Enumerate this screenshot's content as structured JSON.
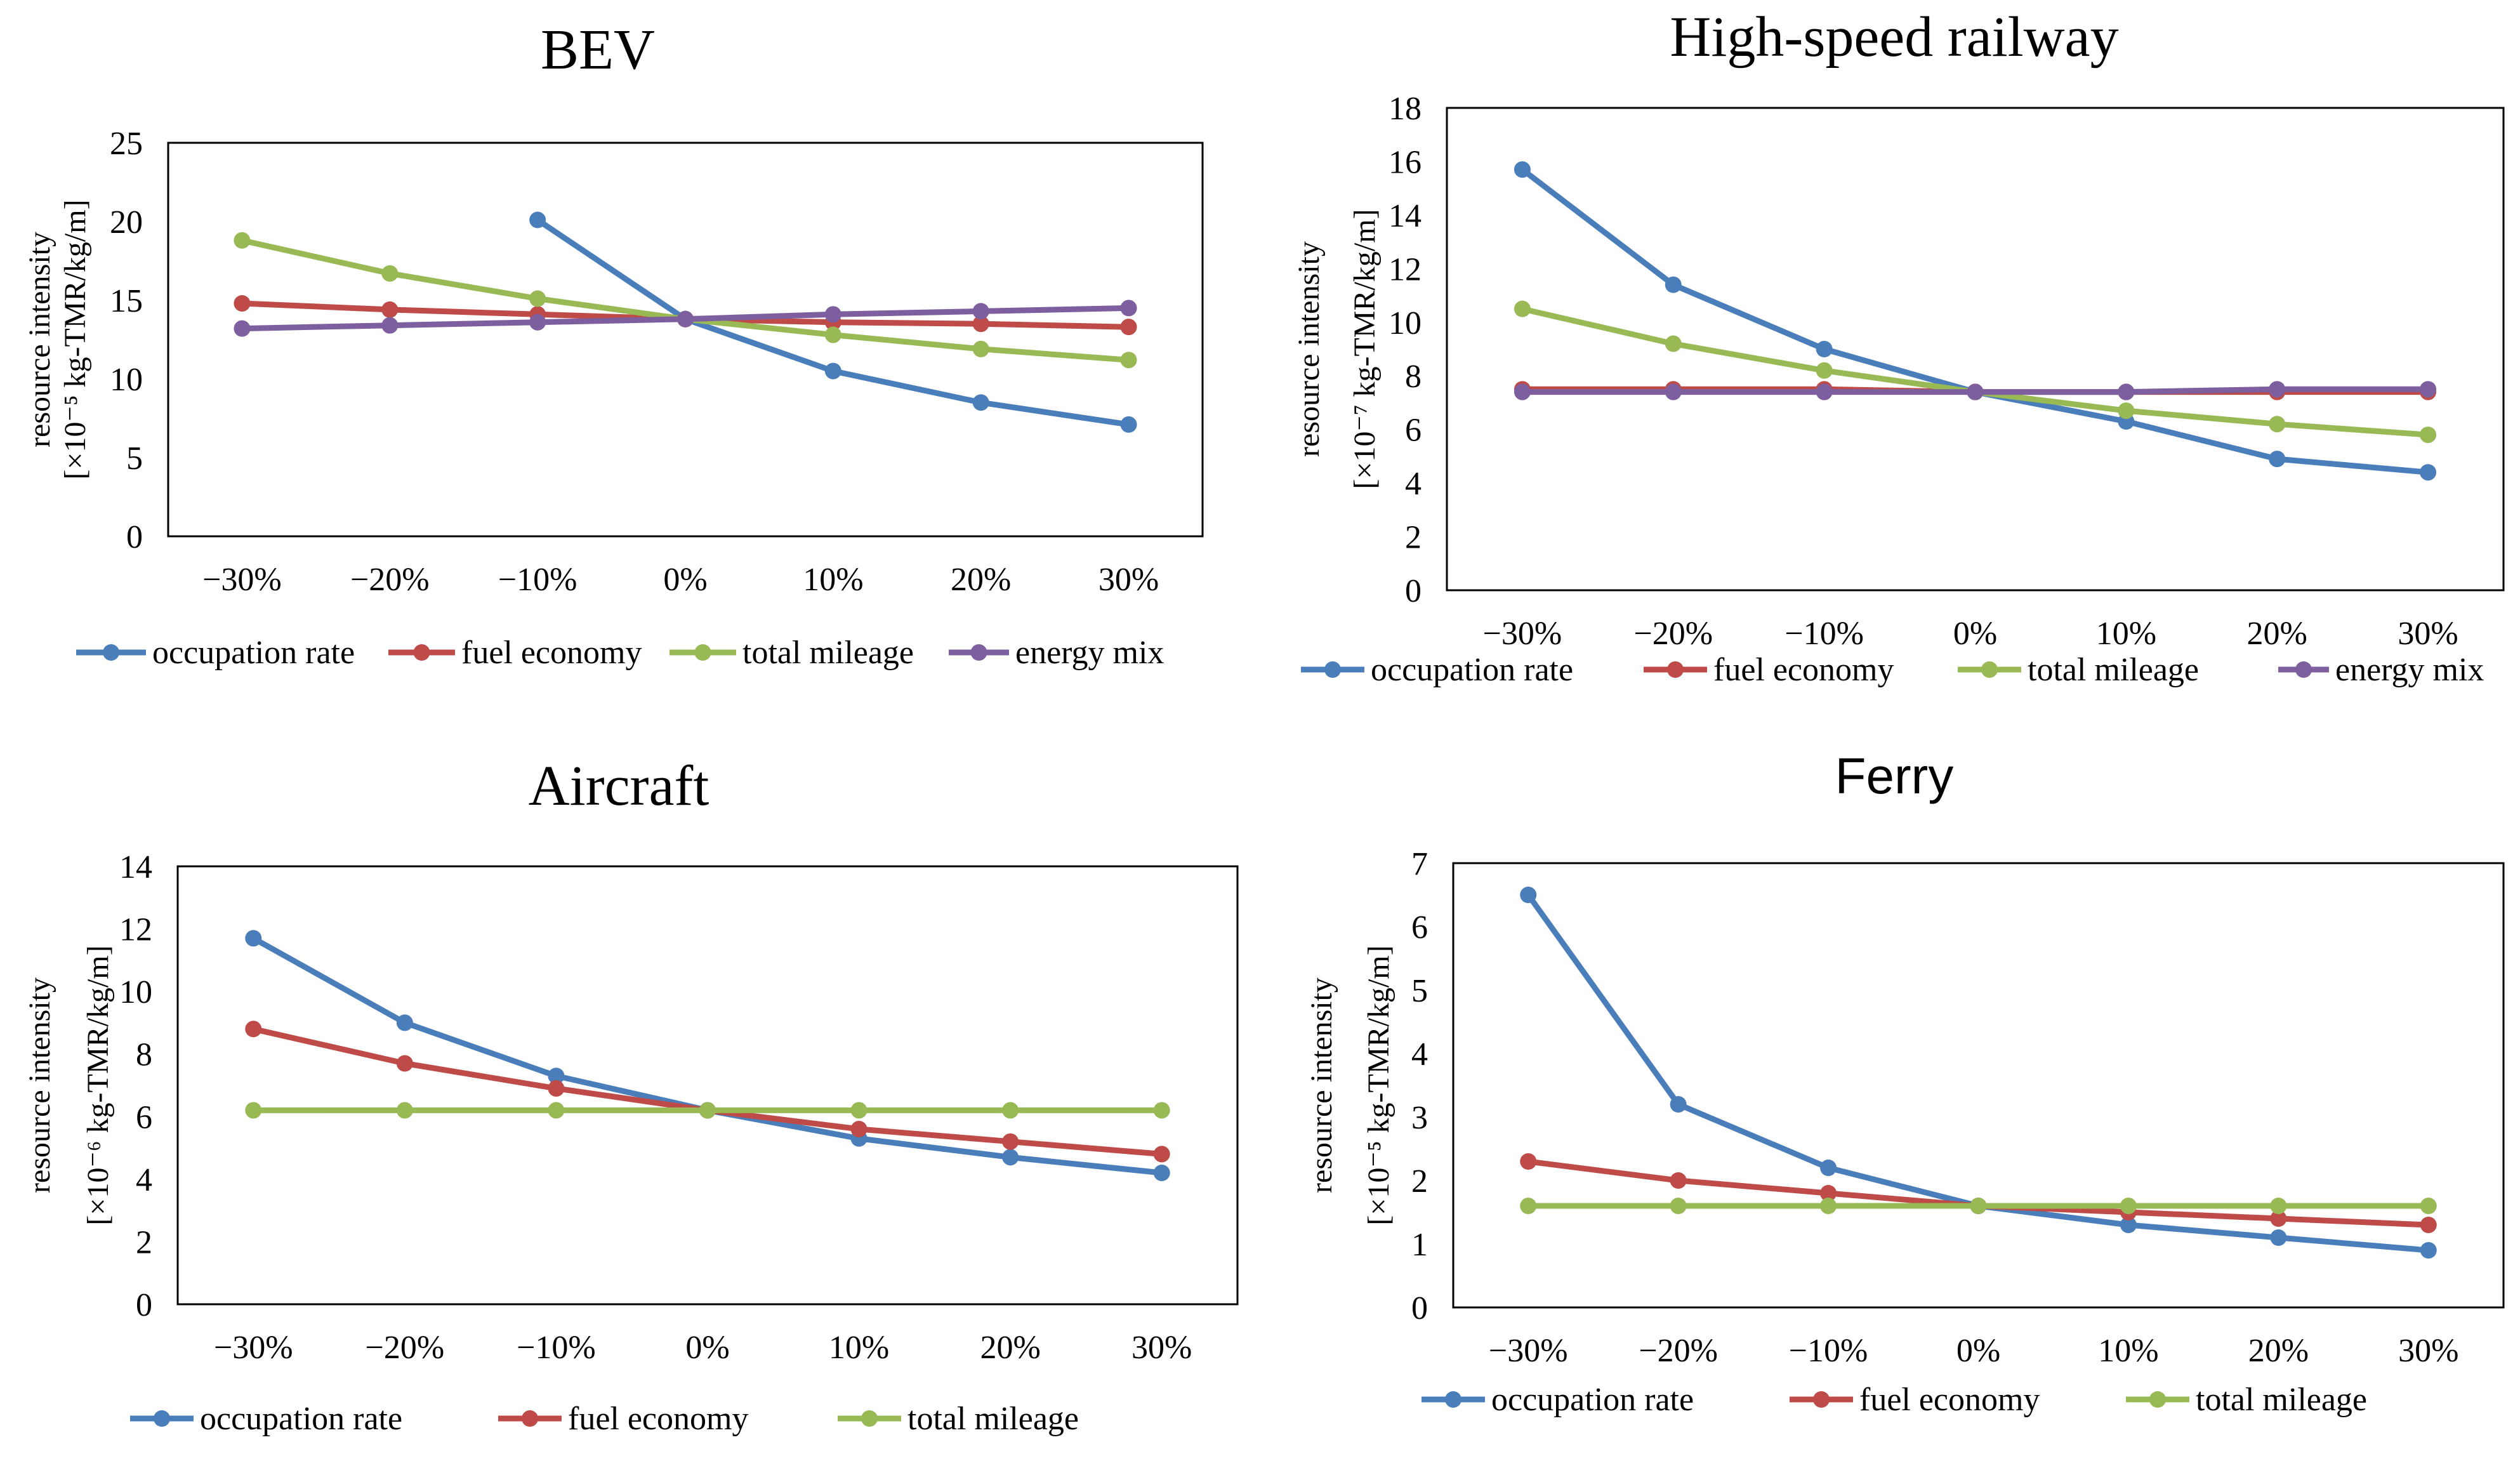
{
  "colors": {
    "occupation_rate": "#4a7ebb",
    "fuel_economy": "#be4b48",
    "total_mileage": "#98b954",
    "energy_mix": "#7d5fa0",
    "axis": "#000000",
    "text": "#000000"
  },
  "chart_data": [
    {
      "type": "line",
      "title": "BEV",
      "title_font": "serif",
      "xlabel": "",
      "ylabel": "resource intensity",
      "ylabel_unit": "[×10⁻⁵ kg-TMR/kg/m]",
      "categories": [
        "−30%",
        "−20%",
        "−10%",
        "0%",
        "10%",
        "20%",
        "30%"
      ],
      "ylim": [
        0,
        25
      ],
      "yticks": [
        "0",
        "5",
        "10",
        "15",
        "20",
        "25"
      ],
      "ytick_values": [
        0,
        5,
        10,
        15,
        20,
        25
      ],
      "series": [
        {
          "name": "occupation rate",
          "key": "occupation_rate",
          "values": [
            null,
            null,
            20.1,
            13.8,
            10.5,
            8.5,
            7.1
          ]
        },
        {
          "name": "fuel economy",
          "key": "fuel_economy",
          "values": [
            14.8,
            14.4,
            14.1,
            13.8,
            13.6,
            13.5,
            13.3
          ]
        },
        {
          "name": "total mileage",
          "key": "total_mileage",
          "values": [
            18.8,
            16.7,
            15.1,
            13.8,
            12.8,
            11.9,
            11.2
          ]
        },
        {
          "name": "energy mix",
          "key": "energy_mix",
          "values": [
            13.2,
            13.4,
            13.6,
            13.8,
            14.1,
            14.3,
            14.5
          ]
        }
      ]
    },
    {
      "type": "line",
      "title": "High-speed railway",
      "title_font": "serif",
      "xlabel": "",
      "ylabel": "resource intensity",
      "ylabel_unit": "[×10⁻⁷ kg-TMR/kg/m]",
      "categories": [
        "−30%",
        "−20%",
        "−10%",
        "0%",
        "10%",
        "20%",
        "30%"
      ],
      "ylim": [
        0,
        18
      ],
      "yticks": [
        "0",
        "2",
        "4",
        "6",
        "8",
        "10",
        "12",
        "14",
        "16",
        "18"
      ],
      "ytick_values": [
        0,
        2,
        4,
        6,
        8,
        10,
        12,
        14,
        16,
        18
      ],
      "series": [
        {
          "name": "occupation rate",
          "key": "occupation_rate",
          "values": [
            15.7,
            11.4,
            9.0,
            7.4,
            6.3,
            4.9,
            4.4
          ]
        },
        {
          "name": "fuel economy",
          "key": "fuel_economy",
          "values": [
            7.5,
            7.5,
            7.5,
            7.4,
            7.4,
            7.4,
            7.4
          ]
        },
        {
          "name": "total mileage",
          "key": "total_mileage",
          "values": [
            10.5,
            9.2,
            8.2,
            7.4,
            6.7,
            6.2,
            5.8
          ]
        },
        {
          "name": "energy mix",
          "key": "energy_mix",
          "values": [
            7.4,
            7.4,
            7.4,
            7.4,
            7.4,
            7.5,
            7.5
          ]
        }
      ]
    },
    {
      "type": "line",
      "title": "Aircraft",
      "title_font": "serif",
      "xlabel": "",
      "ylabel": "resource intensity",
      "ylabel_unit": "[×10⁻⁶ kg-TMR/kg/m]",
      "categories": [
        "−30%",
        "−20%",
        "−10%",
        "0%",
        "10%",
        "20%",
        "30%"
      ],
      "ylim": [
        0,
        14
      ],
      "yticks": [
        "0",
        "2",
        "4",
        "6",
        "8",
        "10",
        "12",
        "14"
      ],
      "ytick_values": [
        0,
        2,
        4,
        6,
        8,
        10,
        12,
        14
      ],
      "series": [
        {
          "name": "occupation rate",
          "key": "occupation_rate",
          "values": [
            11.7,
            9.0,
            7.3,
            6.2,
            5.3,
            4.7,
            4.2
          ]
        },
        {
          "name": "fuel economy",
          "key": "fuel_economy",
          "values": [
            8.8,
            7.7,
            6.9,
            6.2,
            5.6,
            5.2,
            4.8
          ]
        },
        {
          "name": "total mileage",
          "key": "total_mileage",
          "values": [
            6.2,
            6.2,
            6.2,
            6.2,
            6.2,
            6.2,
            6.2
          ]
        }
      ]
    },
    {
      "type": "line",
      "title": "Ferry",
      "title_font": "sans",
      "xlabel": "",
      "ylabel": "resource intensity",
      "ylabel_unit": "[×10⁻⁵ kg-TMR/kg/m]",
      "categories": [
        "−30%",
        "−20%",
        "−10%",
        "0%",
        "10%",
        "20%",
        "30%"
      ],
      "ylim": [
        0,
        7
      ],
      "yticks": [
        "0",
        "1",
        "2",
        "3",
        "4",
        "5",
        "6",
        "7"
      ],
      "ytick_values": [
        0,
        1,
        2,
        3,
        4,
        5,
        6,
        7
      ],
      "series": [
        {
          "name": "occupation rate",
          "key": "occupation_rate",
          "values": [
            6.5,
            3.2,
            2.2,
            1.6,
            1.3,
            1.1,
            0.9
          ]
        },
        {
          "name": "fuel economy",
          "key": "fuel_economy",
          "values": [
            2.3,
            2.0,
            1.8,
            1.6,
            1.5,
            1.4,
            1.3
          ]
        },
        {
          "name": "total mileage",
          "key": "total_mileage",
          "values": [
            1.6,
            1.6,
            1.6,
            1.6,
            1.6,
            1.6,
            1.6
          ]
        }
      ]
    }
  ]
}
